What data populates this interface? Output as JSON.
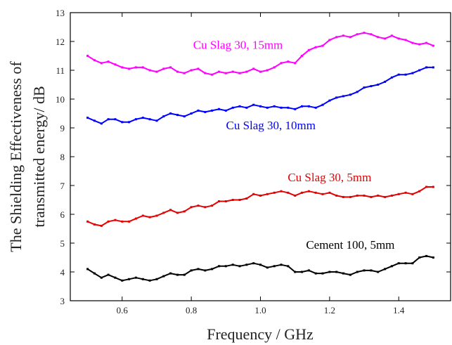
{
  "chart_data": {
    "type": "line",
    "xlabel": "Frequency / GHz",
    "ylabel_lines": [
      "The Shielding Effectiveness of",
      "transmitted energy/ dB"
    ],
    "xlim": [
      0.45,
      1.55
    ],
    "ylim": [
      3,
      13
    ],
    "xticks": [
      0.6,
      0.8,
      1.0,
      1.2,
      1.4
    ],
    "xtick_labels": [
      "0.6",
      "0.8",
      "1.0",
      "1.2",
      "1.4"
    ],
    "yticks": [
      3,
      4,
      5,
      6,
      7,
      8,
      9,
      10,
      11,
      12,
      13
    ],
    "ytick_labels": [
      "3",
      "4",
      "5",
      "6",
      "7",
      "8",
      "9",
      "10",
      "11",
      "12",
      "13"
    ],
    "grid": false,
    "series": [
      {
        "name": "Cu Slag 30, 15mm",
        "color": "#ff00ff",
        "x": [
          0.5,
          0.52,
          0.54,
          0.56,
          0.58,
          0.6,
          0.62,
          0.64,
          0.66,
          0.68,
          0.7,
          0.72,
          0.74,
          0.76,
          0.78,
          0.8,
          0.82,
          0.84,
          0.86,
          0.88,
          0.9,
          0.92,
          0.94,
          0.96,
          0.98,
          1.0,
          1.02,
          1.04,
          1.06,
          1.08,
          1.1,
          1.12,
          1.14,
          1.16,
          1.18,
          1.2,
          1.22,
          1.24,
          1.26,
          1.28,
          1.3,
          1.32,
          1.34,
          1.36,
          1.38,
          1.4,
          1.42,
          1.44,
          1.46,
          1.48,
          1.5
        ],
        "y": [
          11.5,
          11.35,
          11.25,
          11.3,
          11.2,
          11.1,
          11.05,
          11.1,
          11.1,
          11.0,
          10.95,
          11.05,
          11.1,
          10.95,
          10.9,
          11.0,
          11.05,
          10.9,
          10.85,
          10.95,
          10.9,
          10.95,
          10.9,
          10.95,
          11.05,
          10.95,
          11.0,
          11.1,
          11.25,
          11.3,
          11.25,
          11.5,
          11.7,
          11.8,
          11.85,
          12.05,
          12.15,
          12.2,
          12.15,
          12.25,
          12.3,
          12.25,
          12.15,
          12.1,
          12.2,
          12.1,
          12.05,
          11.95,
          11.9,
          11.95,
          11.85
        ]
      },
      {
        "name": "Cu Slag 30, 10mm",
        "color": "#0000ff",
        "x": [
          0.5,
          0.52,
          0.54,
          0.56,
          0.58,
          0.6,
          0.62,
          0.64,
          0.66,
          0.68,
          0.7,
          0.72,
          0.74,
          0.76,
          0.78,
          0.8,
          0.82,
          0.84,
          0.86,
          0.88,
          0.9,
          0.92,
          0.94,
          0.96,
          0.98,
          1.0,
          1.02,
          1.04,
          1.06,
          1.08,
          1.1,
          1.12,
          1.14,
          1.16,
          1.18,
          1.2,
          1.22,
          1.24,
          1.26,
          1.28,
          1.3,
          1.32,
          1.34,
          1.36,
          1.38,
          1.4,
          1.42,
          1.44,
          1.46,
          1.48,
          1.5
        ],
        "y": [
          9.35,
          9.25,
          9.15,
          9.3,
          9.3,
          9.2,
          9.2,
          9.3,
          9.35,
          9.3,
          9.25,
          9.4,
          9.5,
          9.45,
          9.4,
          9.5,
          9.6,
          9.55,
          9.6,
          9.65,
          9.6,
          9.7,
          9.75,
          9.7,
          9.8,
          9.75,
          9.7,
          9.75,
          9.7,
          9.7,
          9.65,
          9.75,
          9.75,
          9.7,
          9.8,
          9.95,
          10.05,
          10.1,
          10.15,
          10.25,
          10.4,
          10.45,
          10.5,
          10.6,
          10.75,
          10.85,
          10.85,
          10.9,
          11.0,
          11.1,
          11.1
        ]
      },
      {
        "name": "Cu Slag 30, 5mm",
        "color": "#e60000",
        "x": [
          0.5,
          0.52,
          0.54,
          0.56,
          0.58,
          0.6,
          0.62,
          0.64,
          0.66,
          0.68,
          0.7,
          0.72,
          0.74,
          0.76,
          0.78,
          0.8,
          0.82,
          0.84,
          0.86,
          0.88,
          0.9,
          0.92,
          0.94,
          0.96,
          0.98,
          1.0,
          1.02,
          1.04,
          1.06,
          1.08,
          1.1,
          1.12,
          1.14,
          1.16,
          1.18,
          1.2,
          1.22,
          1.24,
          1.26,
          1.28,
          1.3,
          1.32,
          1.34,
          1.36,
          1.38,
          1.4,
          1.42,
          1.44,
          1.46,
          1.48,
          1.5
        ],
        "y": [
          5.75,
          5.65,
          5.6,
          5.75,
          5.8,
          5.75,
          5.75,
          5.85,
          5.95,
          5.9,
          5.95,
          6.05,
          6.15,
          6.05,
          6.1,
          6.25,
          6.3,
          6.25,
          6.3,
          6.45,
          6.45,
          6.5,
          6.5,
          6.55,
          6.7,
          6.65,
          6.7,
          6.75,
          6.8,
          6.75,
          6.65,
          6.75,
          6.8,
          6.75,
          6.7,
          6.75,
          6.65,
          6.6,
          6.6,
          6.65,
          6.65,
          6.6,
          6.65,
          6.6,
          6.65,
          6.7,
          6.75,
          6.7,
          6.8,
          6.95,
          6.95
        ]
      },
      {
        "name": "Cement 100, 5mm",
        "color": "#000000",
        "x": [
          0.5,
          0.52,
          0.54,
          0.56,
          0.58,
          0.6,
          0.62,
          0.64,
          0.66,
          0.68,
          0.7,
          0.72,
          0.74,
          0.76,
          0.78,
          0.8,
          0.82,
          0.84,
          0.86,
          0.88,
          0.9,
          0.92,
          0.94,
          0.96,
          0.98,
          1.0,
          1.02,
          1.04,
          1.06,
          1.08,
          1.1,
          1.12,
          1.14,
          1.16,
          1.18,
          1.2,
          1.22,
          1.24,
          1.26,
          1.28,
          1.3,
          1.32,
          1.34,
          1.36,
          1.38,
          1.4,
          1.42,
          1.44,
          1.46,
          1.48,
          1.5
        ],
        "y": [
          4.1,
          3.95,
          3.8,
          3.9,
          3.8,
          3.7,
          3.75,
          3.8,
          3.75,
          3.7,
          3.75,
          3.85,
          3.95,
          3.9,
          3.9,
          4.05,
          4.1,
          4.05,
          4.1,
          4.2,
          4.2,
          4.25,
          4.2,
          4.25,
          4.3,
          4.25,
          4.15,
          4.2,
          4.25,
          4.2,
          4.0,
          4.0,
          4.05,
          3.95,
          3.95,
          4.0,
          4.0,
          3.95,
          3.9,
          4.0,
          4.05,
          4.05,
          4.0,
          4.1,
          4.2,
          4.3,
          4.3,
          4.3,
          4.5,
          4.55,
          4.5
        ]
      }
    ],
    "annotations": [
      {
        "text": "Cu Slag 30, 15mm",
        "x": 0.935,
        "y": 11.75,
        "color": "#ff00ff"
      },
      {
        "text": "Cu Slag 30, 10mm",
        "x": 1.03,
        "y": 8.95,
        "color": "#0000ff"
      },
      {
        "text": "Cu Slag 30, 5mm",
        "x": 1.2,
        "y": 7.15,
        "color": "#e60000"
      },
      {
        "text": "Cement 100, 5mm",
        "x": 1.26,
        "y": 4.8,
        "color": "#000000"
      }
    ]
  }
}
